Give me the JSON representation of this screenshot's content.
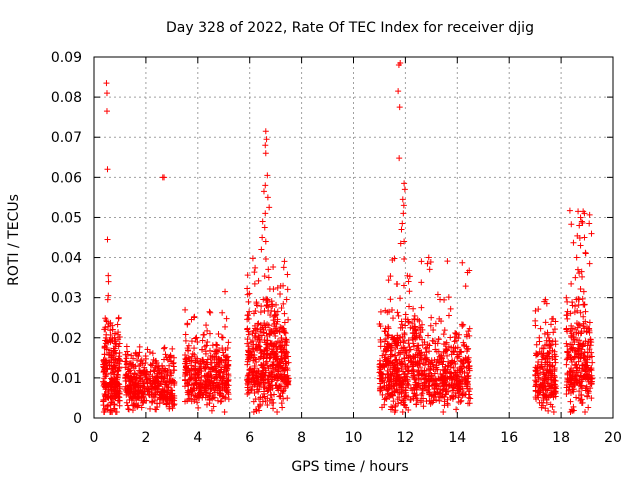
{
  "chart_data": {
    "type": "scatter",
    "title": "Day 328 of 2022, Rate Of TEC Index for receiver djig",
    "xlabel": "GPS time / hours",
    "ylabel": "ROTI / TECUs",
    "xlim": [
      0,
      20
    ],
    "ylim": [
      0,
      0.09
    ],
    "xticks": [
      0,
      2,
      4,
      6,
      8,
      10,
      12,
      14,
      16,
      18,
      20
    ],
    "xtick_labels": [
      "0",
      "2",
      "4",
      "6",
      "8",
      "10",
      "12",
      "14",
      "16",
      "18",
      "20"
    ],
    "yticks": [
      0,
      0.01,
      0.02,
      0.03,
      0.04,
      0.05,
      0.06,
      0.07,
      0.08,
      0.09
    ],
    "ytick_labels": [
      "0",
      "0.01",
      "0.02",
      "0.03",
      "0.04",
      "0.05",
      "0.06",
      "0.07",
      "0.08",
      "0.09"
    ],
    "grid": true,
    "marker": "+",
    "marker_color": "#ff0000",
    "clusters": [
      {
        "x_range": [
          0.35,
          1.0
        ],
        "y_median": 0.009,
        "y_spread": 0.007,
        "y_max": 0.025,
        "n": 260
      },
      {
        "x_range": [
          1.2,
          3.1
        ],
        "y_median": 0.007,
        "y_spread": 0.004,
        "y_max": 0.018,
        "n": 420
      },
      {
        "x_range": [
          3.5,
          5.2
        ],
        "y_median": 0.009,
        "y_spread": 0.005,
        "y_max": 0.027,
        "n": 400
      },
      {
        "x_range": [
          5.9,
          7.5
        ],
        "y_median": 0.012,
        "y_spread": 0.008,
        "y_max": 0.04,
        "n": 520
      },
      {
        "x_range": [
          11.0,
          12.5
        ],
        "y_median": 0.011,
        "y_spread": 0.007,
        "y_max": 0.04,
        "n": 440
      },
      {
        "x_range": [
          12.5,
          14.5
        ],
        "y_median": 0.01,
        "y_spread": 0.006,
        "y_max": 0.04,
        "n": 440
      },
      {
        "x_range": [
          17.0,
          17.8
        ],
        "y_median": 0.009,
        "y_spread": 0.006,
        "y_max": 0.03,
        "n": 210
      },
      {
        "x_range": [
          18.2,
          19.2
        ],
        "y_median": 0.012,
        "y_spread": 0.008,
        "y_max": 0.052,
        "n": 300
      }
    ],
    "outliers": [
      {
        "x": 0.48,
        "y": 0.0835
      },
      {
        "x": 0.5,
        "y": 0.081
      },
      {
        "x": 0.5,
        "y": 0.0765
      },
      {
        "x": 0.52,
        "y": 0.062
      },
      {
        "x": 0.52,
        "y": 0.0445
      },
      {
        "x": 0.55,
        "y": 0.0355
      },
      {
        "x": 0.56,
        "y": 0.034
      },
      {
        "x": 0.55,
        "y": 0.0305
      },
      {
        "x": 0.53,
        "y": 0.0295
      },
      {
        "x": 2.65,
        "y": 0.06
      },
      {
        "x": 2.7,
        "y": 0.06
      },
      {
        "x": 6.62,
        "y": 0.0715
      },
      {
        "x": 6.65,
        "y": 0.0695
      },
      {
        "x": 6.6,
        "y": 0.068
      },
      {
        "x": 6.62,
        "y": 0.066
      },
      {
        "x": 6.68,
        "y": 0.0605
      },
      {
        "x": 6.6,
        "y": 0.058
      },
      {
        "x": 6.55,
        "y": 0.0565
      },
      {
        "x": 6.7,
        "y": 0.055
      },
      {
        "x": 6.6,
        "y": 0.051
      },
      {
        "x": 6.75,
        "y": 0.0525
      },
      {
        "x": 6.5,
        "y": 0.049
      },
      {
        "x": 6.58,
        "y": 0.0475
      },
      {
        "x": 6.48,
        "y": 0.045
      },
      {
        "x": 6.62,
        "y": 0.044
      },
      {
        "x": 6.45,
        "y": 0.042
      },
      {
        "x": 11.75,
        "y": 0.088
      },
      {
        "x": 11.8,
        "y": 0.0885
      },
      {
        "x": 11.72,
        "y": 0.0815
      },
      {
        "x": 11.78,
        "y": 0.0775
      },
      {
        "x": 11.76,
        "y": 0.0648
      },
      {
        "x": 11.95,
        "y": 0.0585
      },
      {
        "x": 11.98,
        "y": 0.057
      },
      {
        "x": 11.9,
        "y": 0.0545
      },
      {
        "x": 11.94,
        "y": 0.053
      },
      {
        "x": 11.92,
        "y": 0.051
      },
      {
        "x": 11.88,
        "y": 0.0485
      },
      {
        "x": 11.85,
        "y": 0.047
      },
      {
        "x": 11.82,
        "y": 0.0435
      },
      {
        "x": 11.95,
        "y": 0.044
      },
      {
        "x": 18.75,
        "y": 0.05
      },
      {
        "x": 18.85,
        "y": 0.0515
      },
      {
        "x": 18.9,
        "y": 0.051
      },
      {
        "x": 18.8,
        "y": 0.049
      },
      {
        "x": 18.7,
        "y": 0.048
      },
      {
        "x": 18.9,
        "y": 0.045
      },
      {
        "x": 18.75,
        "y": 0.043
      },
      {
        "x": 18.95,
        "y": 0.041
      },
      {
        "x": 18.6,
        "y": 0.04
      },
      {
        "x": 19.1,
        "y": 0.0385
      },
      {
        "x": 18.65,
        "y": 0.037
      },
      {
        "x": 18.55,
        "y": 0.035
      },
      {
        "x": 17.4,
        "y": 0.0295
      },
      {
        "x": 17.35,
        "y": 0.029
      },
      {
        "x": 17.45,
        "y": 0.0285
      },
      {
        "x": 5.05,
        "y": 0.0315
      },
      {
        "x": 12.9,
        "y": 0.04
      },
      {
        "x": 12.85,
        "y": 0.0385
      }
    ]
  }
}
